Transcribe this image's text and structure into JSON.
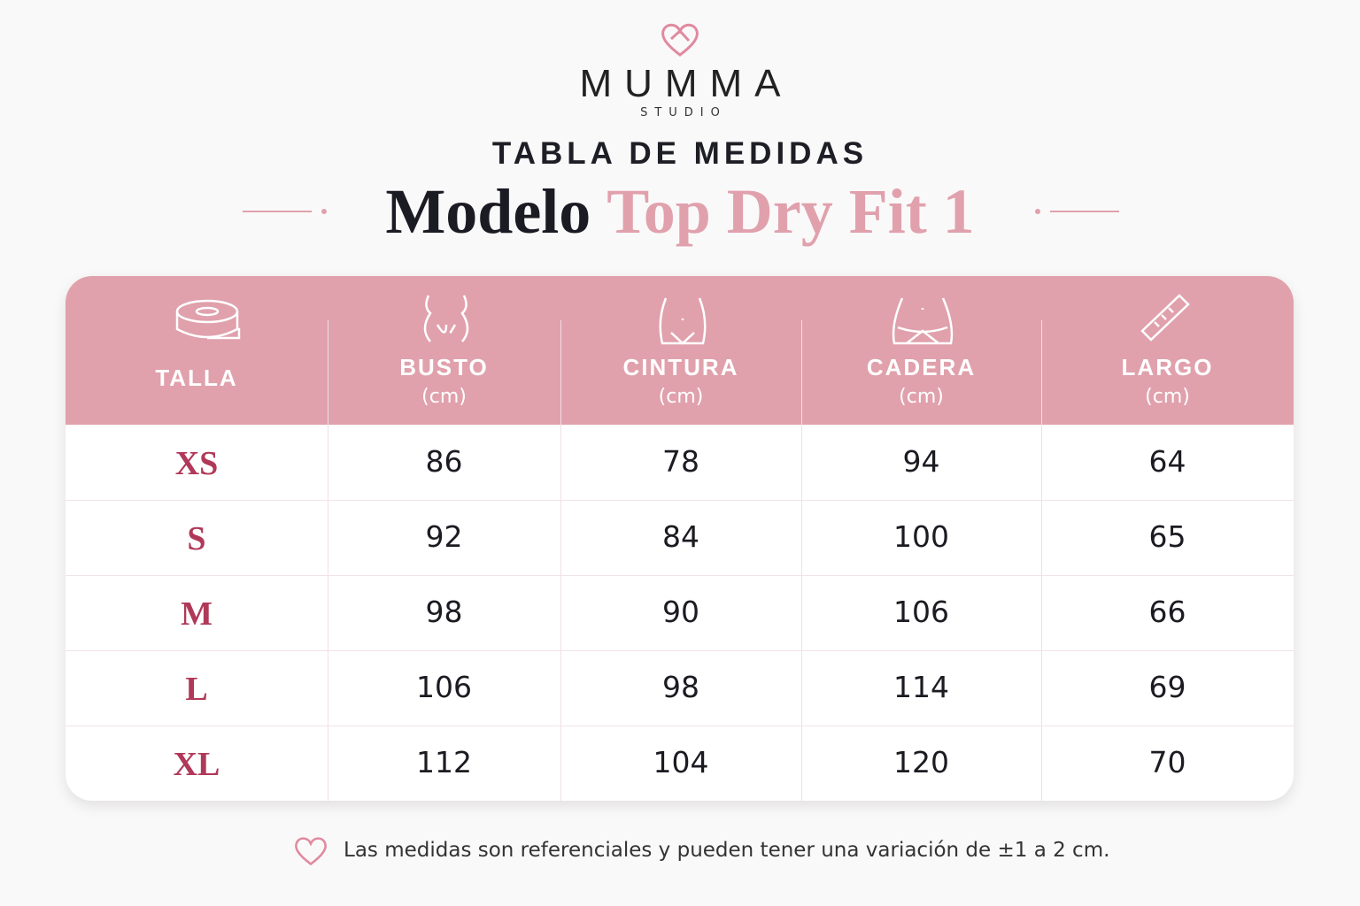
{
  "brand": {
    "name": "MUMMA",
    "sub": "STUDIO"
  },
  "heading": "TABLA DE MEDIDAS",
  "title": {
    "prefix": "Modelo",
    "model": "Top Dry Fit 1"
  },
  "table": {
    "columns": [
      {
        "label": "TALLA"
      },
      {
        "label": "BUSTO",
        "unit": "(cm)"
      },
      {
        "label": "CINTURA",
        "unit": "(cm)"
      },
      {
        "label": "CADERA",
        "unit": "(cm)"
      },
      {
        "label": "LARGO",
        "unit": "(cm)"
      }
    ],
    "rows": [
      [
        "XS",
        86,
        78,
        94,
        64
      ],
      [
        "S",
        92,
        84,
        100,
        65
      ],
      [
        "M",
        98,
        90,
        106,
        66
      ],
      [
        "L",
        106,
        98,
        114,
        69
      ],
      [
        "XL",
        112,
        104,
        120,
        70
      ]
    ]
  },
  "footnote": "Las medidas son referenciales y pueden tener una variación de ±1 a 2 cm."
}
